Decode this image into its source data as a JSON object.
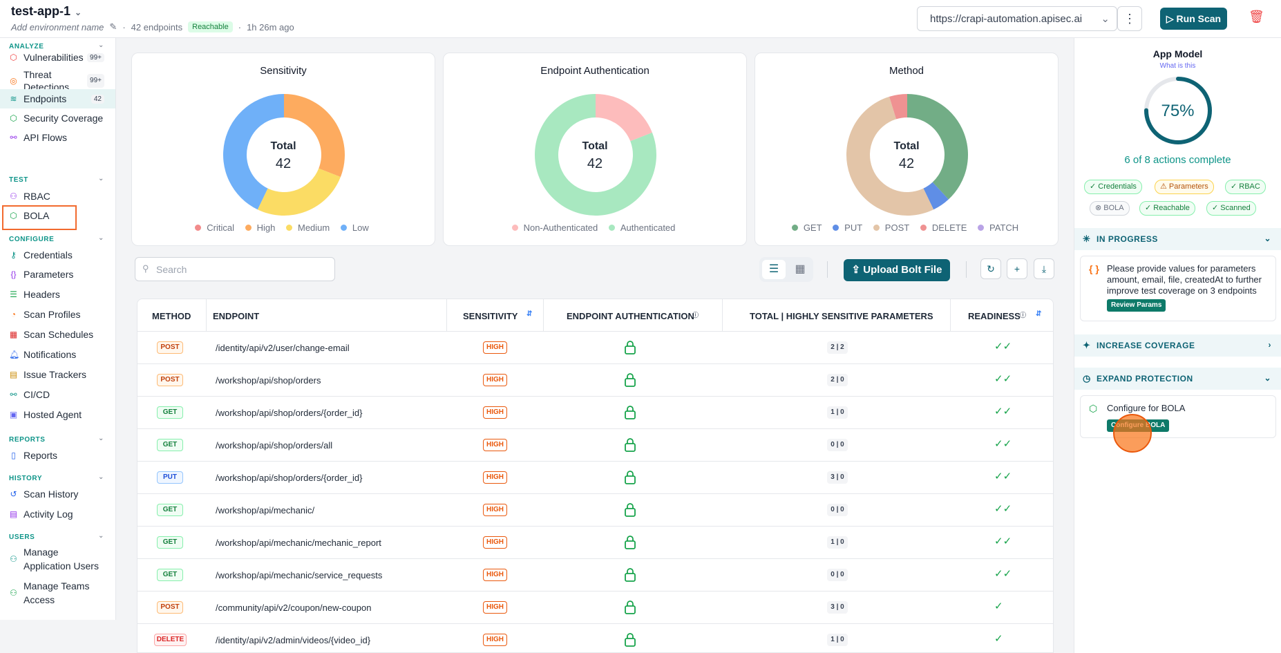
{
  "header": {
    "app_name": "test-app-1",
    "env_placeholder": "Add environment name",
    "endpoints_count": "42 endpoints",
    "status": "Reachable",
    "last_seen": "1h 26m ago",
    "url": "https://crapi-automation.apisec.ai",
    "run_label": "Run Scan"
  },
  "sidebar": {
    "analyze": "ANALYZE",
    "test": "TEST",
    "configure": "CONFIGURE",
    "reports": "REPORTS",
    "history": "HISTORY",
    "users": "USERS",
    "items": [
      {
        "label": "Vulnerabilities",
        "badge": "99+"
      },
      {
        "label": "Threat",
        "label2": "Detections",
        "badge": "99+"
      },
      {
        "label": "Endpoints",
        "badge": "42"
      },
      {
        "label": "Security Coverage"
      },
      {
        "label": "API Flows"
      },
      {
        "label": "RBAC"
      },
      {
        "label": "BOLA"
      },
      {
        "label": "Credentials"
      },
      {
        "label": "Parameters"
      },
      {
        "label": "Headers"
      },
      {
        "label": "Scan Profiles"
      },
      {
        "label": "Scan Schedules"
      },
      {
        "label": "Notifications"
      },
      {
        "label": "Issue Trackers"
      },
      {
        "label": "CI/CD"
      },
      {
        "label": "Hosted Agent"
      },
      {
        "label": "Reports"
      },
      {
        "label": "Scan History"
      },
      {
        "label": "Activity Log"
      },
      {
        "label": "Manage",
        "label2": "Application Users"
      },
      {
        "label": "Manage Teams",
        "label2": "Access"
      }
    ]
  },
  "charts": {
    "total_label": "Total",
    "colors": {
      "critical": "#f28b8b",
      "high": "#fdab5f",
      "medium": "#fbdc64",
      "low": "#6fb0f8",
      "get": "#72ad86",
      "put": "#5f8ee6",
      "post": "#e3c5a8",
      "delete": "#ef9292",
      "patch": "#b9a3e6",
      "nonauth": "#fdbcbc",
      "auth": "#a8e8c0"
    }
  },
  "chart_data": [
    {
      "type": "pie",
      "title": "Sensitivity",
      "total": "42",
      "categories": [
        "Critical",
        "High",
        "Medium",
        "Low"
      ],
      "values": [
        0,
        13,
        11,
        18
      ]
    },
    {
      "type": "pie",
      "title": "Endpoint Authentication",
      "total": "42",
      "categories": [
        "Non-Authenticated",
        "Authenticated"
      ],
      "values": [
        8,
        34
      ]
    },
    {
      "type": "pie",
      "title": "Method",
      "total": "42",
      "categories": [
        "GET",
        "PUT",
        "POST",
        "DELETE",
        "PATCH"
      ],
      "values": [
        16,
        2,
        22,
        2,
        0
      ]
    }
  ],
  "toolbar": {
    "search_placeholder": "Search",
    "upload_label": "Upload Bolt File"
  },
  "table": {
    "headers": [
      "METHOD",
      "ENDPOINT",
      "SENSITIVITY",
      "ENDPOINT AUTHENTICATION",
      "TOTAL | HIGHLY SENSITIVE PARAMETERS",
      "READINESS"
    ],
    "rows": [
      {
        "method": "POST",
        "endpoint": "/identity/api/v2/user/change-email",
        "sensitivity": "HIGH",
        "params": "2 | 2"
      },
      {
        "method": "POST",
        "endpoint": "/workshop/api/shop/orders",
        "sensitivity": "HIGH",
        "params": "2 | 0"
      },
      {
        "method": "GET",
        "endpoint": "/workshop/api/shop/orders/{order_id}",
        "sensitivity": "HIGH",
        "params": "1 | 0"
      },
      {
        "method": "GET",
        "endpoint": "/workshop/api/shop/orders/all",
        "sensitivity": "HIGH",
        "params": "0 | 0"
      },
      {
        "method": "PUT",
        "endpoint": "/workshop/api/shop/orders/{order_id}",
        "sensitivity": "HIGH",
        "params": "3 | 0"
      },
      {
        "method": "GET",
        "endpoint": "/workshop/api/mechanic/",
        "sensitivity": "HIGH",
        "params": "0 | 0"
      },
      {
        "method": "GET",
        "endpoint": "/workshop/api/mechanic/mechanic_report",
        "sensitivity": "HIGH",
        "params": "1 | 0"
      },
      {
        "method": "GET",
        "endpoint": "/workshop/api/mechanic/service_requests",
        "sensitivity": "HIGH",
        "params": "0 | 0"
      },
      {
        "method": "POST",
        "endpoint": "/community/api/v2/coupon/new-coupon",
        "sensitivity": "HIGH",
        "params": "3 | 0"
      },
      {
        "method": "DELETE",
        "endpoint": "/identity/api/v2/admin/videos/{video_id}",
        "sensitivity": "HIGH",
        "params": "1 | 0"
      }
    ]
  },
  "app_model": {
    "title": "App Model",
    "what": "What is this",
    "percent": "75%",
    "progress": 0.75,
    "actions": "6 of 8 actions complete",
    "chips": [
      "Credentials",
      "Parameters",
      "RBAC",
      "BOLA",
      "Reachable",
      "Scanned"
    ],
    "in_progress": "IN PROGRESS",
    "in_progress_text": "Please provide values for parameters amount, email, file, createdAt to further improve test coverage on 3 endpoints",
    "review_btn": "Review Params",
    "increase": "INCREASE COVERAGE",
    "expand": "EXPAND PROTECTION",
    "configure_text": "Configure for BOLA",
    "configure_btn": "Configure BOLA"
  }
}
